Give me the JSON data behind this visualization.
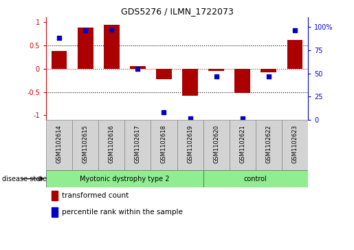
{
  "title": "GDS5276 / ILMN_1722073",
  "samples": [
    "GSM1102614",
    "GSM1102615",
    "GSM1102616",
    "GSM1102617",
    "GSM1102618",
    "GSM1102619",
    "GSM1102620",
    "GSM1102621",
    "GSM1102622",
    "GSM1102623"
  ],
  "transformed_count": [
    0.38,
    0.88,
    0.95,
    0.05,
    -0.22,
    -0.58,
    -0.05,
    -0.52,
    -0.08,
    0.62
  ],
  "percentile_rank": [
    88,
    96,
    97,
    55,
    8,
    2,
    47,
    2,
    47,
    96
  ],
  "disease_groups": [
    {
      "label": "Myotonic dystrophy type 2",
      "start": 0,
      "end": 6,
      "color": "#90ee90"
    },
    {
      "label": "control",
      "start": 6,
      "end": 10,
      "color": "#90ee90"
    }
  ],
  "bar_color": "#aa0000",
  "dot_color": "#0000cc",
  "ylim_left": [
    -1.1,
    1.1
  ],
  "ylim_right": [
    0,
    110
  ],
  "yticks_left": [
    -1,
    -0.5,
    0,
    0.5,
    1
  ],
  "ytick_labels_left": [
    "-1",
    "-0.5",
    "0",
    "0.5",
    "1"
  ],
  "yticks_right": [
    0,
    25,
    50,
    75,
    100
  ],
  "ytick_labels_right": [
    "0",
    "25",
    "50",
    "75",
    "100%"
  ],
  "hlines": [
    -0.5,
    0,
    0.5
  ],
  "hline_colors": [
    "black",
    "red",
    "black"
  ],
  "hline_styles": [
    "dotted",
    "dotted",
    "dotted"
  ],
  "legend_items": [
    {
      "label": "transformed count",
      "color": "#aa0000"
    },
    {
      "label": "percentile rank within the sample",
      "color": "#0000cc"
    }
  ],
  "xlabel_disease": "disease state",
  "sample_box_color": "#d3d3d3",
  "bar_width": 0.6
}
